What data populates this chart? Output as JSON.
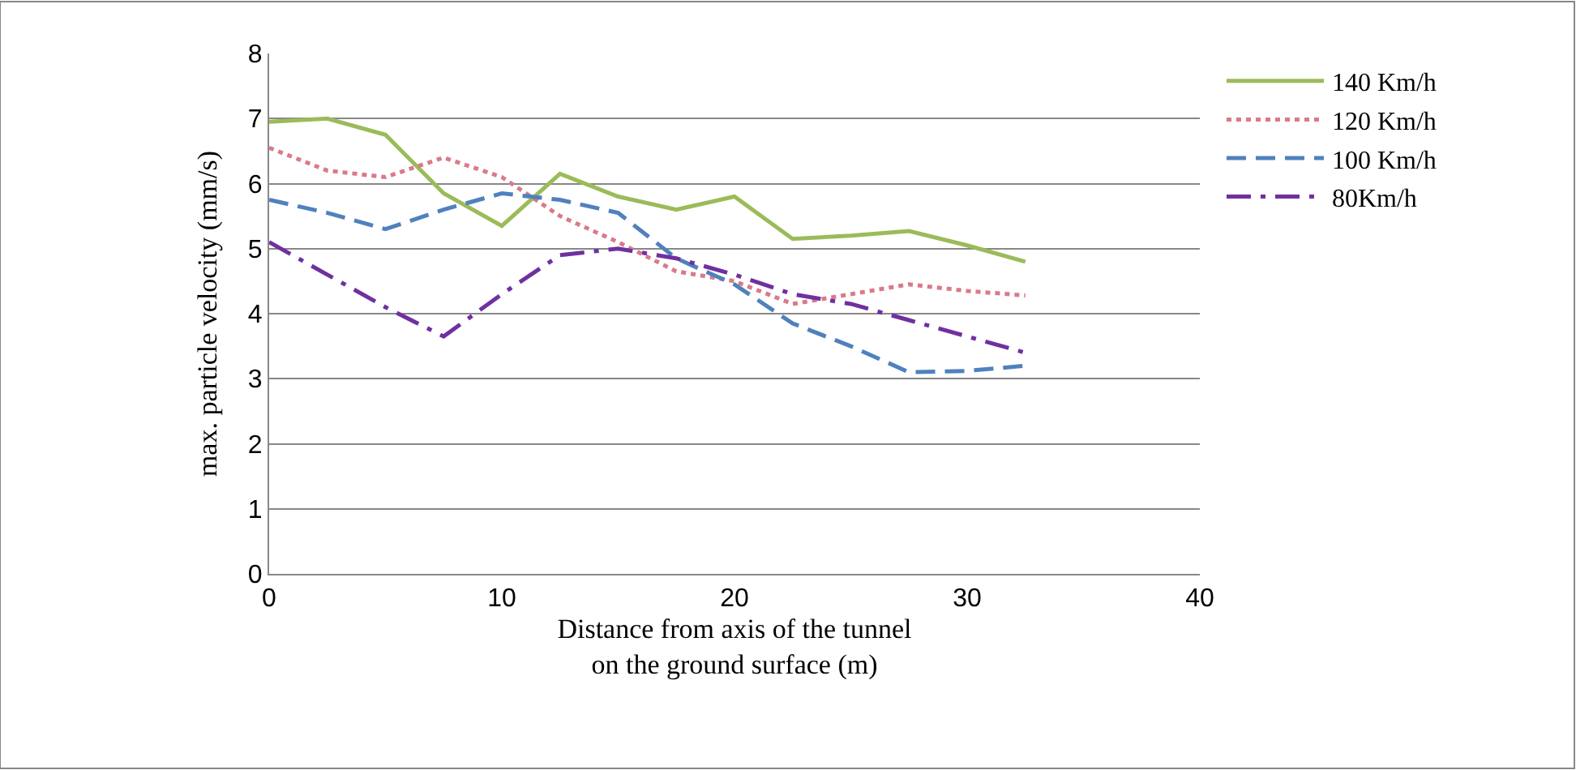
{
  "chart_data": {
    "type": "line",
    "xlabel": "Distance from axis of the tunnel\non the ground surface (m)",
    "ylabel": "max. particle velocity (mm/s)",
    "x": [
      0,
      2.5,
      5,
      7.5,
      10,
      12.5,
      15,
      17.5,
      20,
      22.5,
      25,
      27.5,
      30,
      32.5
    ],
    "series": [
      {
        "name": "140 Km/h",
        "color": "#9bbb59",
        "line_style": "solid",
        "values": [
          6.95,
          7.0,
          6.75,
          5.85,
          5.35,
          6.15,
          5.8,
          5.6,
          5.8,
          5.15,
          5.2,
          5.27,
          5.05,
          4.8
        ]
      },
      {
        "name": "120 Km/h",
        "color": "#d97a8a",
        "line_style": "dotted",
        "values": [
          6.55,
          6.2,
          6.1,
          6.4,
          6.1,
          5.5,
          5.1,
          4.65,
          4.5,
          4.15,
          4.3,
          4.45,
          4.35,
          4.28
        ]
      },
      {
        "name": "100 Km/h",
        "color": "#4f81bd",
        "line_style": "dashed",
        "values": [
          5.75,
          5.55,
          5.3,
          5.6,
          5.85,
          5.75,
          5.55,
          4.85,
          4.45,
          3.85,
          3.5,
          3.1,
          3.12,
          3.2
        ]
      },
      {
        "name": "80Km/h",
        "color": "#7030a0",
        "line_style": "dashdot",
        "values": [
          5.1,
          4.6,
          4.1,
          3.65,
          4.3,
          4.9,
          5.0,
          4.85,
          4.6,
          4.3,
          4.15,
          3.9,
          3.65,
          3.4
        ]
      }
    ],
    "xlim": [
      0,
      40
    ],
    "xticks": [
      0,
      10,
      20,
      30,
      40
    ],
    "ylim": [
      0,
      8
    ],
    "yticks": [
      0,
      1,
      2,
      3,
      4,
      5,
      6,
      7,
      8
    ],
    "grid": "y",
    "legend": "right",
    "marker": "none"
  }
}
